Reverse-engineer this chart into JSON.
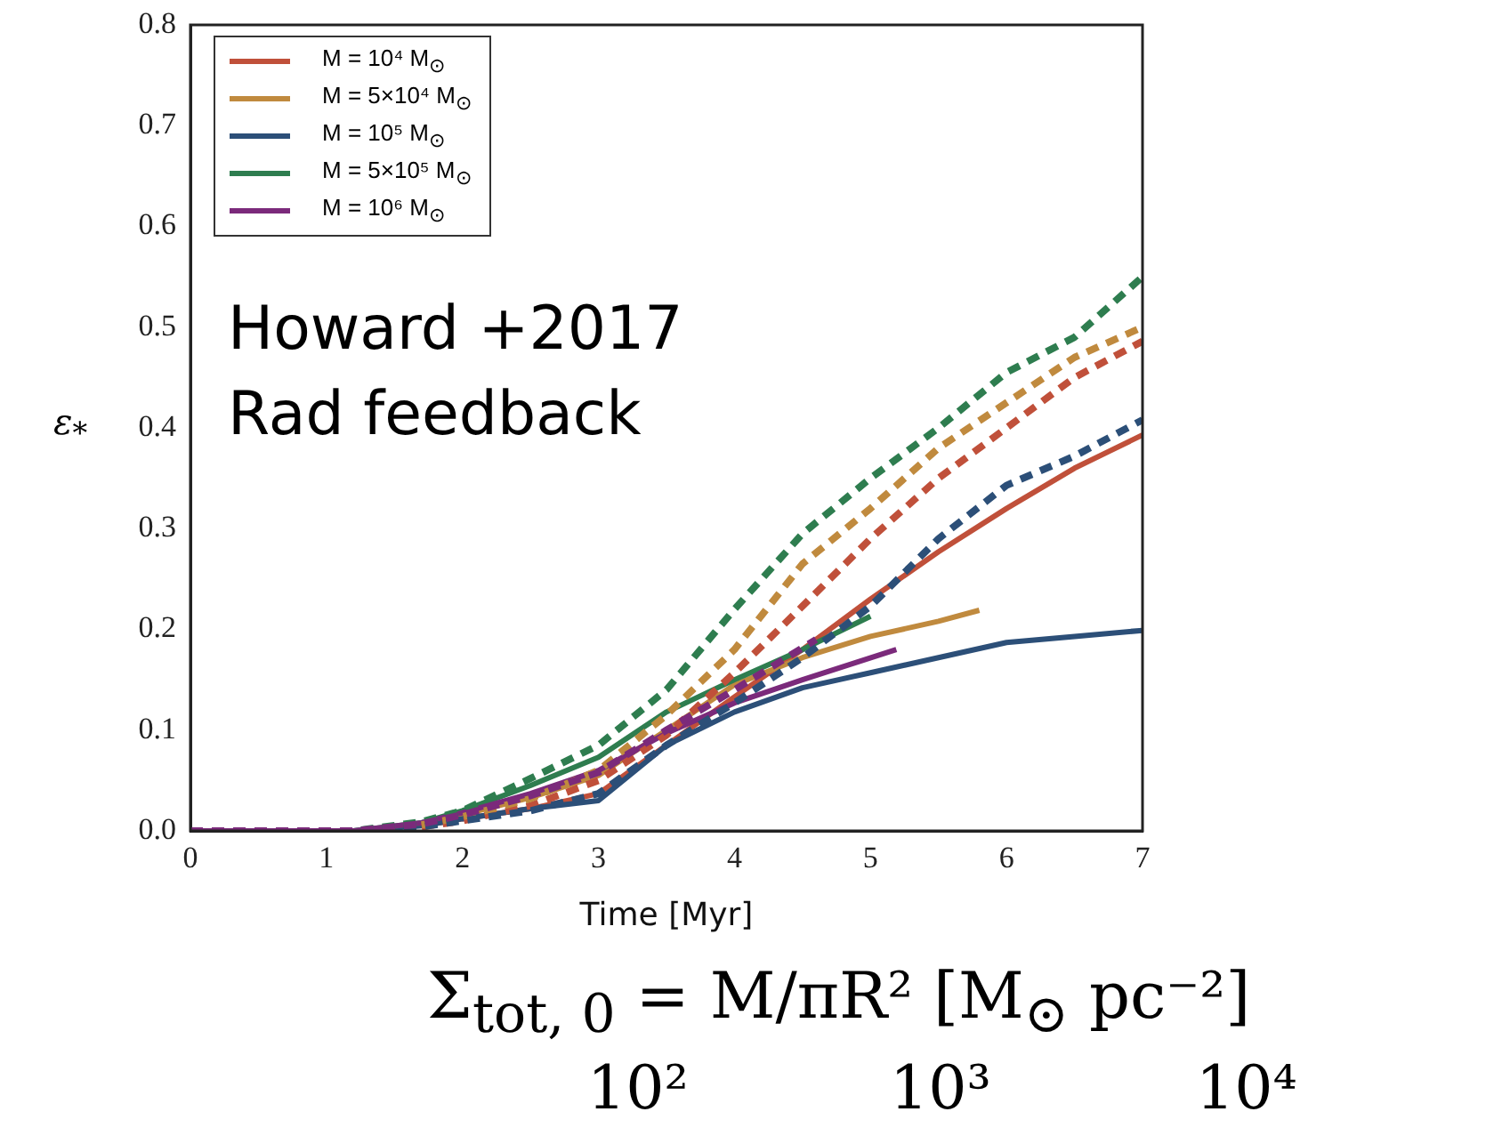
{
  "chart_data": {
    "type": "line",
    "xlabel": "Time [Myr]",
    "ylabel": "ε$_{*}$",
    "xlim": [
      0,
      7
    ],
    "xticks": [
      0,
      1,
      2,
      3,
      4,
      5,
      6,
      7
    ],
    "ylim": [
      0,
      0.8
    ],
    "yticks": [
      {
        "value": 0,
        "label": "0.0"
      },
      0.1,
      0.2,
      0.3,
      0.4,
      0.5,
      0.6,
      0.7,
      0.8
    ],
    "grid": false,
    "legend": "top left",
    "marker": "none",
    "annotations": [
      "Howard +2017",
      "Rad feedback",
      "Σ$_{tot, 0}$ = M/πR² [M$_{⊙}$ pc⁻²]",
      "10²",
      "10³",
      "10⁴"
    ],
    "series": [
      {
        "name": "M = 10⁴ M$_{⊙}$",
        "color": "#c0503a",
        "line_style": "solid",
        "x": [
          1.7,
          2,
          2.5,
          3,
          3.5,
          4,
          4.5,
          5,
          5.5,
          6,
          6.5,
          7
        ],
        "values": [
          0.005,
          0.012,
          0.022,
          0.037,
          0.085,
          0.133,
          0.18,
          0.23,
          0.277,
          0.32,
          0.36,
          0.393
        ]
      },
      {
        "name": "M = 5×10⁴ M$_{⊙}$",
        "color": "#c08a3e",
        "line_style": "solid",
        "x": [
          1.7,
          2,
          2.5,
          3,
          3.5,
          4,
          4.5,
          5,
          5.5,
          5.8
        ],
        "values": [
          0.007,
          0.016,
          0.033,
          0.055,
          0.1,
          0.145,
          0.172,
          0.193,
          0.208,
          0.219
        ]
      },
      {
        "name": "M = 10⁵ M$_{⊙}$",
        "color": "#2c4f78",
        "line_style": "solid",
        "x": [
          0,
          1.2,
          1.7,
          2,
          2.5,
          3,
          3.5,
          4,
          4.5,
          5,
          5.5,
          6,
          6.5,
          7
        ],
        "values": [
          0,
          0,
          0.005,
          0.012,
          0.022,
          0.03,
          0.085,
          0.118,
          0.142,
          0.157,
          0.172,
          0.187,
          0.193,
          0.199
        ]
      },
      {
        "name": "M = 5×10⁵ M$_{⊙}$",
        "color": "#2e7d4f",
        "line_style": "solid",
        "x": [
          0,
          1.2,
          1.7,
          2,
          2.5,
          3,
          3.5,
          4,
          4.5,
          5
        ],
        "values": [
          0,
          0,
          0.008,
          0.02,
          0.045,
          0.073,
          0.118,
          0.15,
          0.18,
          0.213
        ]
      },
      {
        "name": "M = 10⁶ M$_{⊙}$",
        "color": "#7b2a7b",
        "line_style": "solid",
        "x": [
          0,
          1.2,
          1.7,
          2,
          2.5,
          3,
          3.5,
          4,
          4.5,
          5.19
        ],
        "values": [
          0,
          0,
          0.008,
          0.018,
          0.037,
          0.06,
          0.097,
          0.127,
          0.15,
          0.18
        ]
      },
      {
        "color": "#c0503a",
        "line_style": "dashed",
        "x": [
          1.7,
          2,
          2.5,
          3,
          3.5,
          4,
          4.5,
          5,
          5.5,
          6,
          6.5,
          7
        ],
        "values": [
          0.004,
          0.01,
          0.025,
          0.05,
          0.095,
          0.157,
          0.223,
          0.29,
          0.35,
          0.4,
          0.45,
          0.486
        ]
      },
      {
        "color": "#c08a3e",
        "line_style": "dashed",
        "x": [
          1.7,
          2,
          2.5,
          3,
          3.5,
          4,
          4.5,
          5,
          5.5,
          6,
          6.5,
          7
        ],
        "values": [
          0.006,
          0.014,
          0.032,
          0.06,
          0.115,
          0.18,
          0.265,
          0.32,
          0.38,
          0.425,
          0.47,
          0.5
        ]
      },
      {
        "color": "#2c4f78",
        "line_style": "dashed",
        "x": [
          0,
          1.2,
          1.7,
          2,
          2.5,
          3,
          3.5,
          4,
          4.5,
          5,
          5.5,
          6,
          6.5,
          7
        ],
        "values": [
          0,
          0,
          0.004,
          0.01,
          0.02,
          0.037,
          0.085,
          0.127,
          0.172,
          0.223,
          0.29,
          0.343,
          0.372,
          0.408
        ]
      },
      {
        "color": "#2e7d4f",
        "line_style": "dashed",
        "x": [
          0,
          1.2,
          1.7,
          2,
          2.5,
          3,
          3.5,
          4,
          4.5,
          5,
          5.5,
          6,
          6.5,
          7
        ],
        "values": [
          0,
          0,
          0.009,
          0.02,
          0.052,
          0.085,
          0.14,
          0.22,
          0.295,
          0.35,
          0.4,
          0.455,
          0.49,
          0.55
        ]
      },
      {
        "color": "#7b2a7b",
        "line_style": "dashed",
        "x": [
          0,
          1.2,
          1.7,
          2,
          2.5,
          3,
          3.5,
          4,
          4.6
        ],
        "values": [
          0,
          0,
          0.007,
          0.016,
          0.035,
          0.058,
          0.1,
          0.14,
          0.19
        ]
      }
    ]
  }
}
